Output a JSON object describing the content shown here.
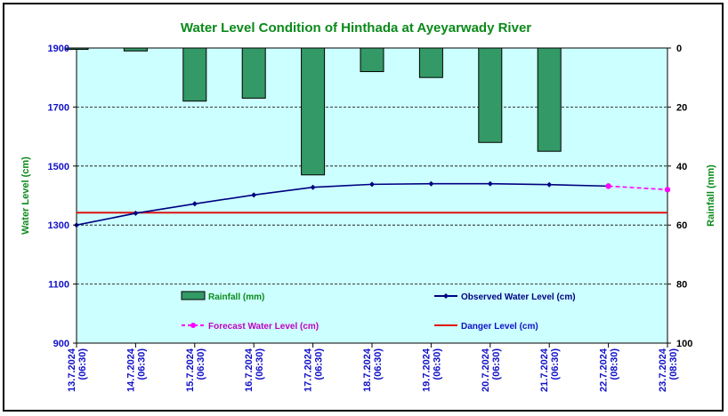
{
  "chart_data": {
    "type": "bar+line",
    "title": "Water Level Condition of Hinthada at Ayeyarwady River",
    "ylabel_left": "Water Level (cm)",
    "ylabel_right": "Rainfall (mm)",
    "ylim_left": [
      900,
      1900
    ],
    "yticks_left": [
      "1900",
      "1700",
      "1500",
      "1300",
      "1100",
      "900"
    ],
    "ylim_right": [
      0,
      100
    ],
    "yticks_right": [
      "0",
      "20",
      "40",
      "60",
      "80",
      "100"
    ],
    "right_axis_inverted": true,
    "grid": "horizontal dashed",
    "categories": [
      [
        "13.7.2024",
        "(06:30)"
      ],
      [
        "14.7.2024",
        "(06:30)"
      ],
      [
        "15.7.2024",
        "(06:30)"
      ],
      [
        "16.7.2024",
        "(06:30)"
      ],
      [
        "17.7.2024",
        "(06:30)"
      ],
      [
        "18.7.2024",
        "(06:30)"
      ],
      [
        "19.7.2024",
        "(06:30)"
      ],
      [
        "20.7.2024",
        "(06:30)"
      ],
      [
        "21.7.2024",
        "(06:30)"
      ],
      [
        "22.7.2024",
        "(08:30)"
      ],
      [
        "23.7.2024",
        "(08:30)"
      ]
    ],
    "rainfall": {
      "name": "Rainfall (mm)",
      "color": "#339966",
      "values": [
        0,
        1,
        18,
        17,
        43,
        8,
        10,
        32,
        35,
        null,
        null
      ]
    },
    "observed": {
      "name": "Observed Water Level (cm)",
      "color": "#000080",
      "values": [
        1300,
        1340,
        1372,
        1402,
        1428,
        1438,
        1440,
        1440,
        1437,
        1432,
        null
      ]
    },
    "forecast": {
      "name": "Forecast Water Level (cm)",
      "color": "#ff00ff",
      "values": [
        null,
        null,
        null,
        null,
        null,
        null,
        null,
        null,
        null,
        1432,
        1420
      ]
    },
    "danger": {
      "name": "Danger Level (cm)",
      "color": "#e01010",
      "value": 1342
    },
    "legend": [
      {
        "label": "Rainfall (mm)",
        "kind": "bar"
      },
      {
        "label": "Observed Water Level (cm)",
        "kind": "line-marker"
      },
      {
        "label": "Forecast Water Level (cm)",
        "kind": "dashed-marker"
      },
      {
        "label": "Danger Level (cm)",
        "kind": "line"
      }
    ]
  }
}
